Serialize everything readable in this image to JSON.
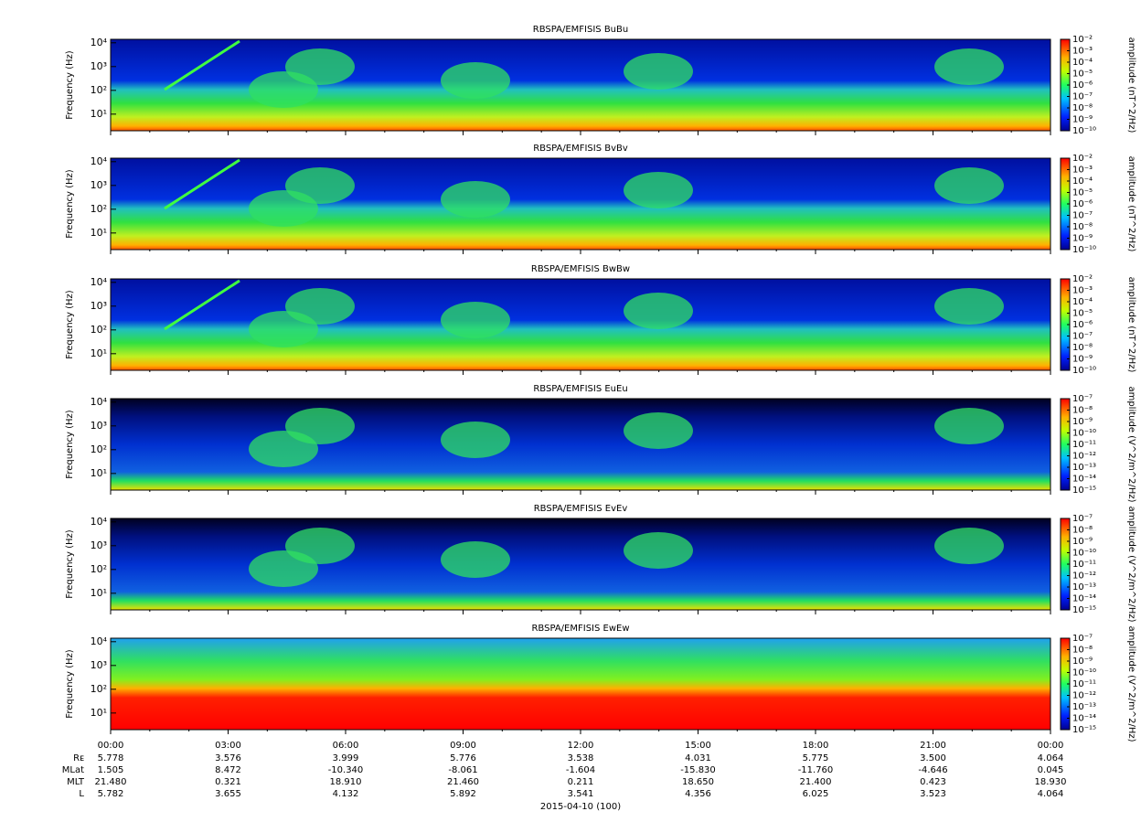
{
  "chart_data": [
    {
      "type": "spectrogram",
      "title": "RBSPA/EMFISIS  BuBu",
      "ylabel": "Frequency (Hz)",
      "ylog": true,
      "ylim": [
        2,
        14000
      ],
      "yticks": [
        {
          "value": 10,
          "label": "10¹"
        },
        {
          "value": 100,
          "label": "10²"
        },
        {
          "value": 1000,
          "label": "10³"
        },
        {
          "value": 10000,
          "label": "10⁴"
        }
      ],
      "colorbar": {
        "label": "amplitude (nT^2/Hz)",
        "log": true,
        "lim": [
          1e-10,
          0.01
        ],
        "ticks": [
          {
            "value": 0.01,
            "label": "10⁻²"
          },
          {
            "value": 0.001,
            "label": "10⁻³"
          },
          {
            "value": 0.0001,
            "label": "10⁻⁴"
          },
          {
            "value": 1e-05,
            "label": "10⁻⁵"
          },
          {
            "value": 1e-06,
            "label": "10⁻⁶"
          },
          {
            "value": 1e-07,
            "label": "10⁻⁷"
          },
          {
            "value": 1e-08,
            "label": "10⁻⁸"
          },
          {
            "value": 1e-09,
            "label": "10⁻⁹"
          },
          {
            "value": 1e-10,
            "label": "10⁻¹⁰"
          }
        ]
      }
    },
    {
      "type": "spectrogram",
      "title": "RBSPA/EMFISIS  BvBv",
      "ylabel": "Frequency (Hz)",
      "ylog": true,
      "ylim": [
        2,
        14000
      ],
      "yticks": [
        {
          "value": 10,
          "label": "10¹"
        },
        {
          "value": 100,
          "label": "10²"
        },
        {
          "value": 1000,
          "label": "10³"
        },
        {
          "value": 10000,
          "label": "10⁴"
        }
      ],
      "colorbar": {
        "label": "amplitude (nT^2/Hz)",
        "log": true,
        "lim": [
          1e-10,
          0.01
        ],
        "ticks": [
          {
            "value": 0.01,
            "label": "10⁻²"
          },
          {
            "value": 0.001,
            "label": "10⁻³"
          },
          {
            "value": 0.0001,
            "label": "10⁻⁴"
          },
          {
            "value": 1e-05,
            "label": "10⁻⁵"
          },
          {
            "value": 1e-06,
            "label": "10⁻⁶"
          },
          {
            "value": 1e-07,
            "label": "10⁻⁷"
          },
          {
            "value": 1e-08,
            "label": "10⁻⁸"
          },
          {
            "value": 1e-09,
            "label": "10⁻⁹"
          },
          {
            "value": 1e-10,
            "label": "10⁻¹⁰"
          }
        ]
      }
    },
    {
      "type": "spectrogram",
      "title": "RBSPA/EMFISIS  BwBw",
      "ylabel": "Frequency (Hz)",
      "ylog": true,
      "ylim": [
        2,
        14000
      ],
      "yticks": [
        {
          "value": 10,
          "label": "10¹"
        },
        {
          "value": 100,
          "label": "10²"
        },
        {
          "value": 1000,
          "label": "10³"
        },
        {
          "value": 10000,
          "label": "10⁴"
        }
      ],
      "colorbar": {
        "label": "amplitude (nT^2/Hz)",
        "log": true,
        "lim": [
          1e-10,
          0.01
        ],
        "ticks": [
          {
            "value": 0.01,
            "label": "10⁻²"
          },
          {
            "value": 0.001,
            "label": "10⁻³"
          },
          {
            "value": 0.0001,
            "label": "10⁻⁴"
          },
          {
            "value": 1e-05,
            "label": "10⁻⁵"
          },
          {
            "value": 1e-06,
            "label": "10⁻⁶"
          },
          {
            "value": 1e-07,
            "label": "10⁻⁷"
          },
          {
            "value": 1e-08,
            "label": "10⁻⁸"
          },
          {
            "value": 1e-09,
            "label": "10⁻⁹"
          },
          {
            "value": 1e-10,
            "label": "10⁻¹⁰"
          }
        ]
      }
    },
    {
      "type": "spectrogram",
      "title": "RBSPA/EMFISIS  EuEu",
      "ylabel": "Frequency (Hz)",
      "ylog": true,
      "ylim": [
        2,
        14000
      ],
      "yticks": [
        {
          "value": 10,
          "label": "10¹"
        },
        {
          "value": 100,
          "label": "10²"
        },
        {
          "value": 1000,
          "label": "10³"
        },
        {
          "value": 10000,
          "label": "10⁴"
        }
      ],
      "colorbar": {
        "label": "amplitude (V^2/m^2/Hz)",
        "log": true,
        "lim": [
          1e-15,
          1e-07
        ],
        "ticks": [
          {
            "value": 1e-07,
            "label": "10⁻⁷"
          },
          {
            "value": 1e-08,
            "label": "10⁻⁸"
          },
          {
            "value": 1e-09,
            "label": "10⁻⁹"
          },
          {
            "value": 1e-10,
            "label": "10⁻¹⁰"
          },
          {
            "value": 1e-11,
            "label": "10⁻¹¹"
          },
          {
            "value": 1e-12,
            "label": "10⁻¹²"
          },
          {
            "value": 1e-13,
            "label": "10⁻¹³"
          },
          {
            "value": 1e-14,
            "label": "10⁻¹⁴"
          },
          {
            "value": 1e-15,
            "label": "10⁻¹⁵"
          }
        ]
      }
    },
    {
      "type": "spectrogram",
      "title": "RBSPA/EMFISIS  EvEv",
      "ylabel": "Frequency (Hz)",
      "ylog": true,
      "ylim": [
        2,
        14000
      ],
      "yticks": [
        {
          "value": 10,
          "label": "10¹"
        },
        {
          "value": 100,
          "label": "10²"
        },
        {
          "value": 1000,
          "label": "10³"
        },
        {
          "value": 10000,
          "label": "10⁴"
        }
      ],
      "colorbar": {
        "label": "amplitude (V^2/m^2/Hz)",
        "log": true,
        "lim": [
          1e-15,
          1e-07
        ],
        "ticks": [
          {
            "value": 1e-07,
            "label": "10⁻⁷"
          },
          {
            "value": 1e-08,
            "label": "10⁻⁸"
          },
          {
            "value": 1e-09,
            "label": "10⁻⁹"
          },
          {
            "value": 1e-10,
            "label": "10⁻¹⁰"
          },
          {
            "value": 1e-11,
            "label": "10⁻¹¹"
          },
          {
            "value": 1e-12,
            "label": "10⁻¹²"
          },
          {
            "value": 1e-13,
            "label": "10⁻¹³"
          },
          {
            "value": 1e-14,
            "label": "10⁻¹⁴"
          },
          {
            "value": 1e-15,
            "label": "10⁻¹⁵"
          }
        ]
      }
    },
    {
      "type": "spectrogram",
      "title": "RBSPA/EMFISIS  EwEw",
      "ylabel": "Frequency (Hz)",
      "ylog": true,
      "ylim": [
        2,
        14000
      ],
      "yticks": [
        {
          "value": 10,
          "label": "10¹"
        },
        {
          "value": 100,
          "label": "10²"
        },
        {
          "value": 1000,
          "label": "10³"
        },
        {
          "value": 10000,
          "label": "10⁴"
        }
      ],
      "colorbar": {
        "label": "amplitude (V^2/m^2/Hz)",
        "log": true,
        "lim": [
          1e-15,
          1e-07
        ],
        "ticks": [
          {
            "value": 1e-07,
            "label": "10⁻⁷"
          },
          {
            "value": 1e-08,
            "label": "10⁻⁸"
          },
          {
            "value": 1e-09,
            "label": "10⁻⁹"
          },
          {
            "value": 1e-10,
            "label": "10⁻¹⁰"
          },
          {
            "value": 1e-11,
            "label": "10⁻¹¹"
          },
          {
            "value": 1e-12,
            "label": "10⁻¹²"
          },
          {
            "value": 1e-13,
            "label": "10⁻¹³"
          },
          {
            "value": 1e-14,
            "label": "10⁻¹⁴"
          },
          {
            "value": 1e-15,
            "label": "10⁻¹⁵"
          }
        ]
      },
      "xlim": [
        0,
        24
      ],
      "xticks": [
        {
          "value": 0,
          "label": "00:00"
        },
        {
          "value": 3,
          "label": "03:00"
        },
        {
          "value": 6,
          "label": "06:00"
        },
        {
          "value": 9,
          "label": "09:00"
        },
        {
          "value": 12,
          "label": "12:00"
        },
        {
          "value": 15,
          "label": "15:00"
        },
        {
          "value": 18,
          "label": "18:00"
        },
        {
          "value": 21,
          "label": "21:00"
        },
        {
          "value": 24,
          "label": "00:00"
        }
      ],
      "xlabel": "2015-04-10 (100)"
    }
  ],
  "ephemeris": [
    {
      "name": "Rᴇ",
      "values": [
        "5.778",
        "3.576",
        "3.999",
        "5.776",
        "3.538",
        "4.031",
        "5.775",
        "3.500",
        "4.064"
      ]
    },
    {
      "name": "MLat",
      "values": [
        "1.505",
        "8.472",
        "-10.340",
        "-8.061",
        "-1.604",
        "-15.830",
        "-11.760",
        "-4.646",
        "0.045"
      ]
    },
    {
      "name": "MLT",
      "values": [
        "21.480",
        "0.321",
        "18.910",
        "21.460",
        "0.211",
        "18.650",
        "21.400",
        "0.423",
        "18.930"
      ]
    },
    {
      "name": "L",
      "values": [
        "5.782",
        "3.655",
        "4.132",
        "5.892",
        "3.541",
        "4.356",
        "6.025",
        "3.523",
        "4.064"
      ]
    }
  ]
}
